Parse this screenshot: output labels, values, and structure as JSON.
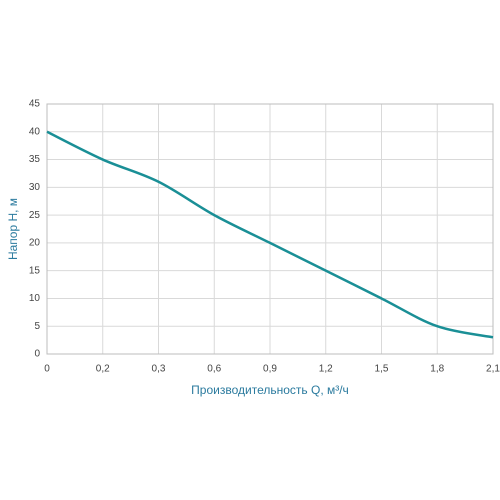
{
  "chart_data": {
    "type": "line",
    "x_label": "Производительность Q, м³/ч",
    "y_label": "Напор H, м",
    "categories": [
      "0",
      "0,2",
      "0,3",
      "0,6",
      "0,9",
      "1,2",
      "1,5",
      "1,8",
      "2,1"
    ],
    "series": [
      {
        "name": "H",
        "color": "#1a8f96",
        "values": [
          40,
          35,
          31,
          25,
          20,
          15,
          10,
          5,
          3
        ]
      }
    ],
    "ylim": [
      0,
      45
    ],
    "yticks": [
      0,
      5,
      10,
      15,
      20,
      25,
      30,
      35,
      40,
      45
    ],
    "grid": true
  }
}
